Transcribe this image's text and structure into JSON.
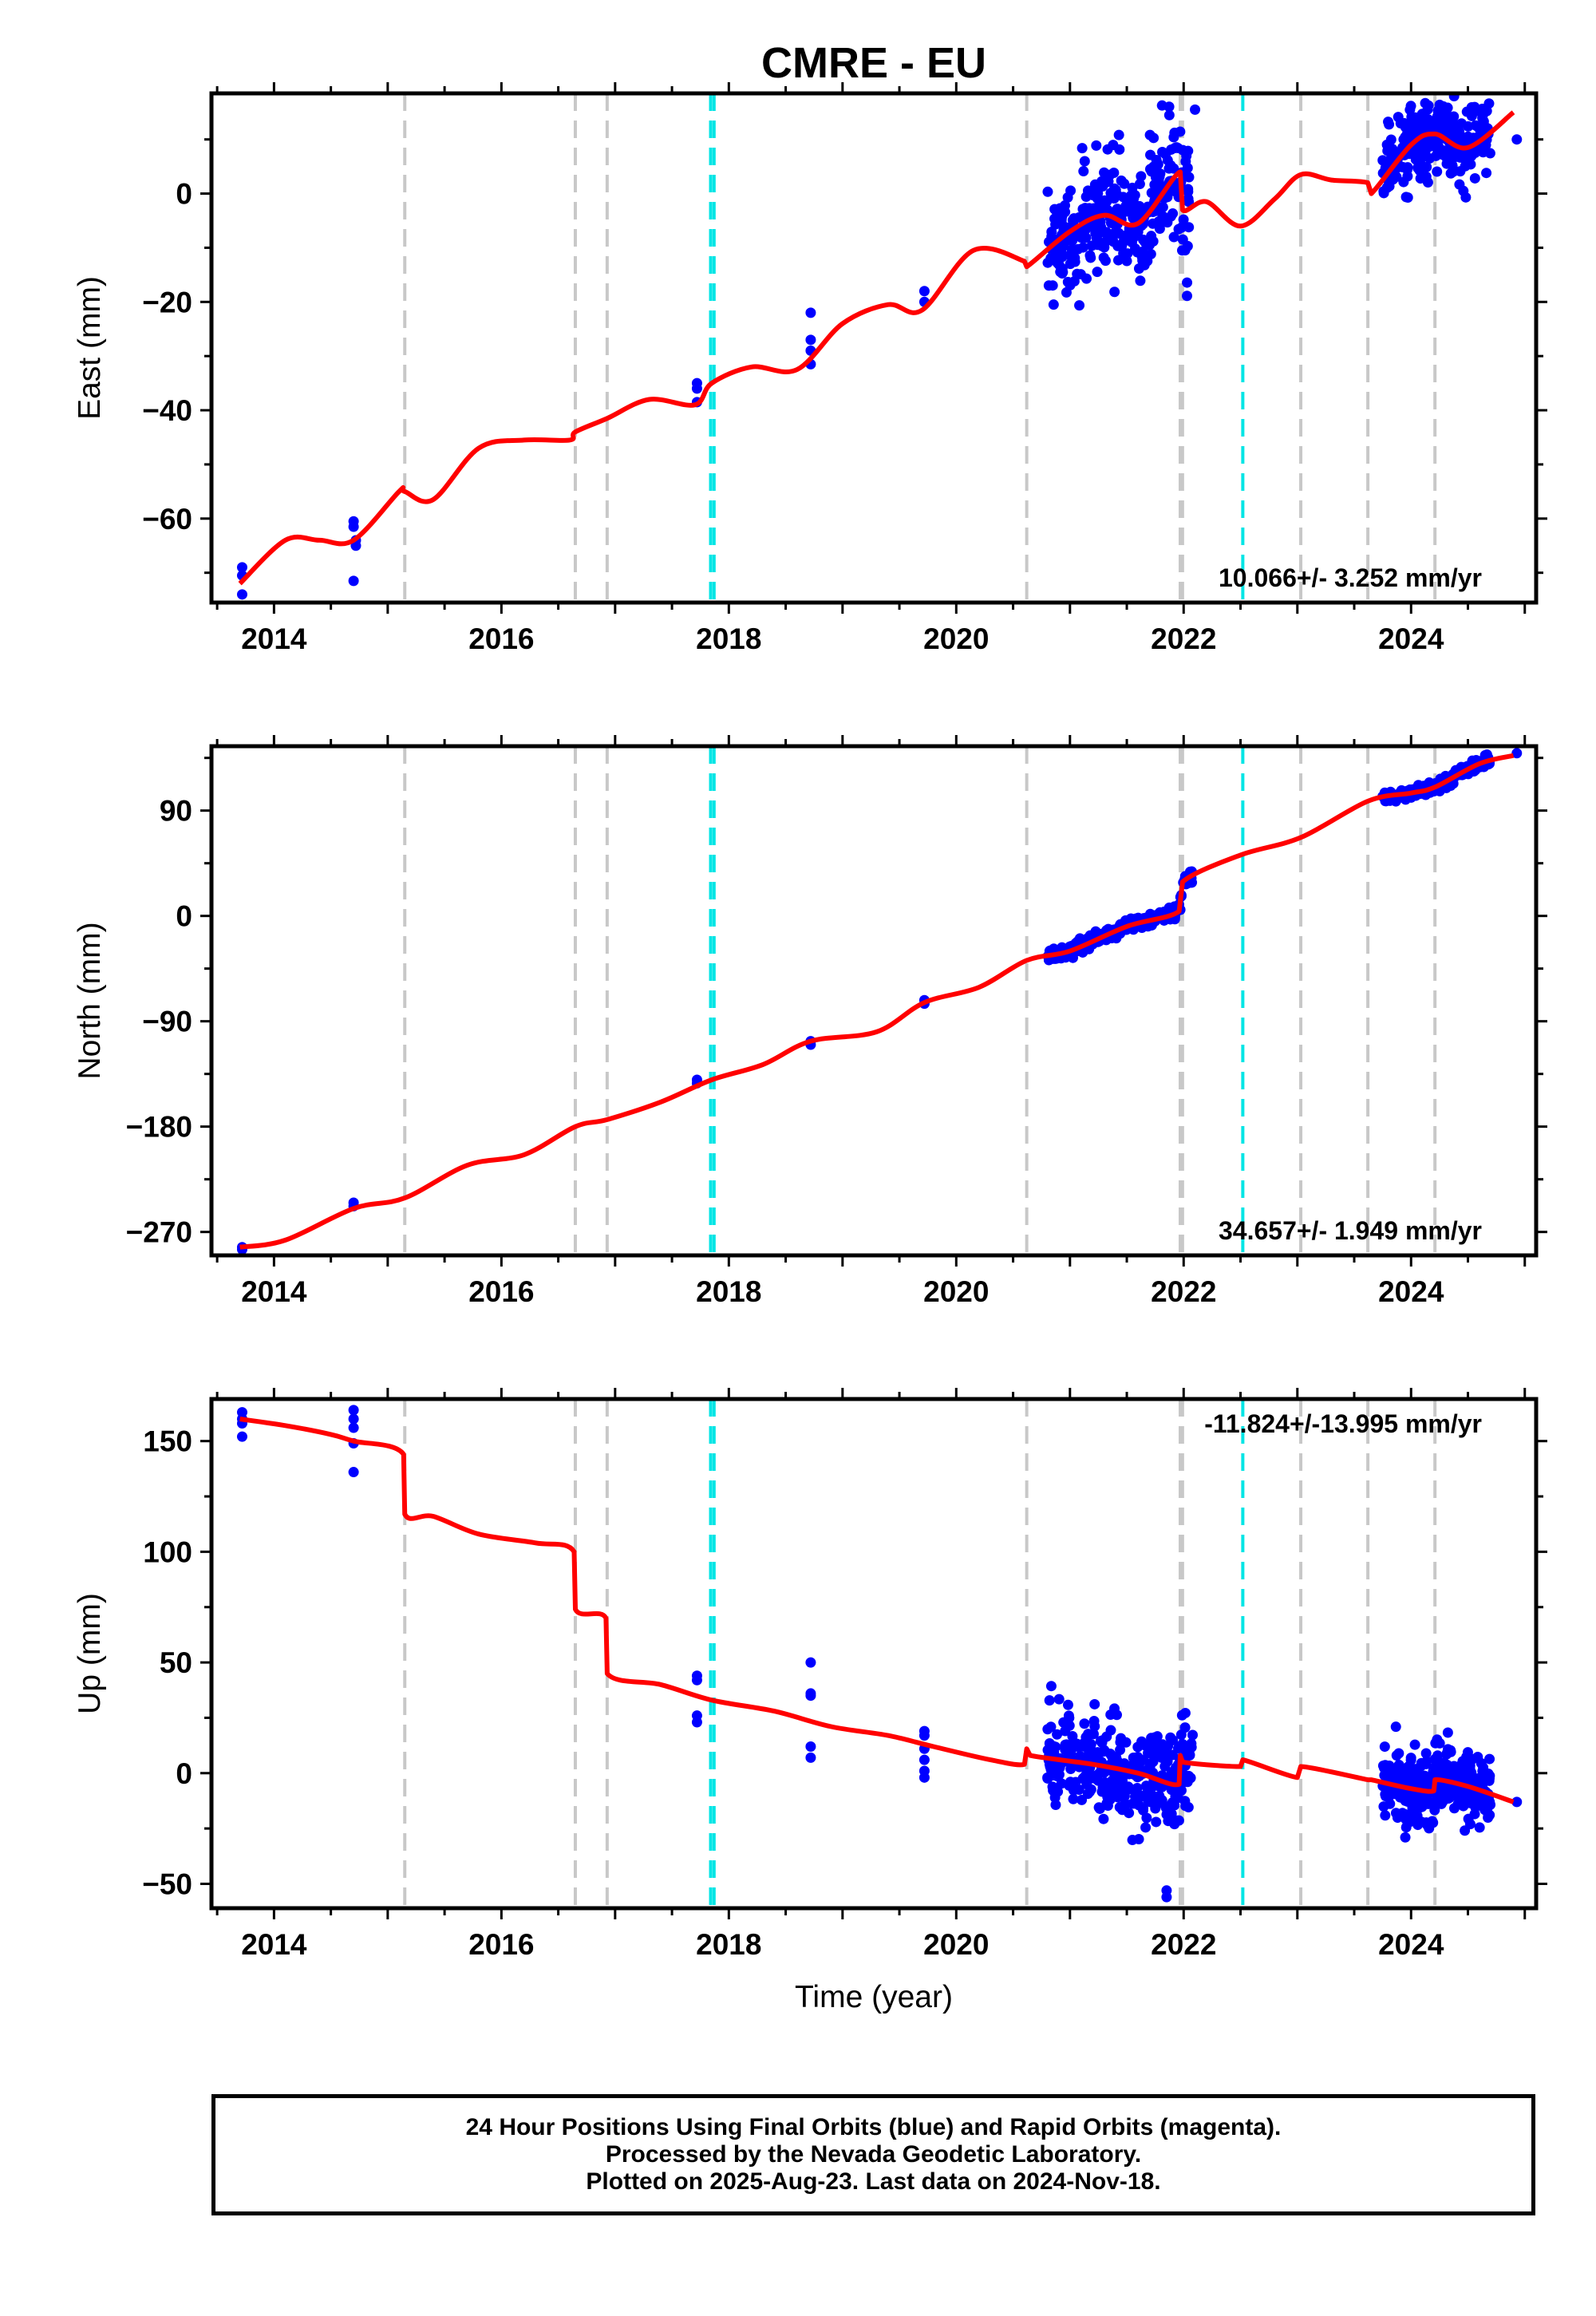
{
  "title": "CMRE - EU",
  "xlabel": "Time (year)",
  "xticks": [
    2014,
    2016,
    2018,
    2020,
    2022,
    2024
  ],
  "footer": {
    "line1": "24 Hour Positions Using Final Orbits (blue) and Rapid Orbits (magenta).",
    "line2": "Processed by the Nevada Geodetic Laboratory.",
    "line3": "Plotted on 2025-Aug-23. Last data on 2024-Nov-18."
  },
  "colors": {
    "data": "#0000ff",
    "model": "#ff0000",
    "antenna_change": "#c8c8c8",
    "equipment_change": "#00e5e5"
  },
  "events": {
    "gray": [
      2015.15,
      2016.65,
      2016.93,
      2020.62,
      2021.97,
      2021.99,
      2023.03,
      2023.62,
      2024.21
    ],
    "cyan": [
      2017.84,
      2017.87,
      2022.52
    ]
  },
  "chart_data": [
    {
      "type": "scatter",
      "ylabel": "East (mm)",
      "xlim": [
        2013.45,
        2025.1
      ],
      "ylim": [
        -75.5,
        18.5
      ],
      "yticks": [
        -60,
        -40,
        -20,
        0
      ],
      "rate_label": "10.066+/- 3.252 mm/yr",
      "rate_pos": "bottom-right",
      "model_trend": [
        [
          2013.7,
          -72
        ],
        [
          2014.1,
          -64
        ],
        [
          2014.4,
          -64
        ],
        [
          2014.7,
          -64
        ],
        [
          2015.1,
          -55
        ],
        [
          2015.15,
          -55
        ],
        [
          2015.4,
          -56.5
        ],
        [
          2015.8,
          -47
        ],
        [
          2016.2,
          -45.5
        ],
        [
          2016.6,
          -45.5
        ],
        [
          2016.65,
          -44
        ],
        [
          2016.93,
          -41.5
        ],
        [
          2017.3,
          -38
        ],
        [
          2017.7,
          -39
        ],
        [
          2017.85,
          -35
        ],
        [
          2018.2,
          -32
        ],
        [
          2018.6,
          -32.5
        ],
        [
          2019.0,
          -24
        ],
        [
          2019.4,
          -20.5
        ],
        [
          2019.7,
          -21.5
        ],
        [
          2020.15,
          -10.5
        ],
        [
          2020.6,
          -12.5
        ],
        [
          2020.62,
          -13.5
        ],
        [
          2021.0,
          -7
        ],
        [
          2021.3,
          -4
        ],
        [
          2021.6,
          -5.5
        ],
        [
          2021.97,
          4
        ],
        [
          2021.99,
          -3
        ],
        [
          2022.2,
          -1.5
        ],
        [
          2022.5,
          -6
        ],
        [
          2022.8,
          -1
        ],
        [
          2023.03,
          3.5
        ],
        [
          2023.3,
          2.5
        ],
        [
          2023.62,
          2
        ],
        [
          2023.65,
          0
        ],
        [
          2024.0,
          9
        ],
        [
          2024.21,
          11
        ],
        [
          2024.5,
          8.5
        ],
        [
          2024.9,
          15
        ]
      ],
      "clusters": [
        {
          "x": [
            2020.8,
            2021.97
          ],
          "center": "model",
          "spread": 5.5,
          "count": 320
        },
        {
          "x": [
            2021.97,
            2022.05
          ],
          "center": "model",
          "spread": 7,
          "count": 24
        },
        {
          "x": [
            2023.75,
            2024.7
          ],
          "center": "model",
          "spread": 3.5,
          "count": 280
        }
      ],
      "points": [
        [
          2013.72,
          -69
        ],
        [
          2013.72,
          -70.5
        ],
        [
          2013.72,
          -74
        ],
        [
          2014.7,
          -60.5
        ],
        [
          2014.7,
          -61.5
        ],
        [
          2014.72,
          -64
        ],
        [
          2014.72,
          -65
        ],
        [
          2014.7,
          -71.5
        ],
        [
          2017.72,
          -35
        ],
        [
          2017.72,
          -36
        ],
        [
          2017.72,
          -38.5
        ],
        [
          2018.72,
          -22
        ],
        [
          2018.72,
          -27
        ],
        [
          2018.72,
          -29
        ],
        [
          2018.72,
          -31.5
        ],
        [
          2019.72,
          -18
        ],
        [
          2019.72,
          -20
        ],
        [
          2022.1,
          15.5
        ],
        [
          2024.93,
          10
        ]
      ]
    },
    {
      "type": "scatter",
      "ylabel": "North (mm)",
      "xlim": [
        2013.45,
        2025.1
      ],
      "ylim": [
        -290,
        145
      ],
      "yticks": [
        -270,
        -180,
        -90,
        0,
        90
      ],
      "rate_label": "34.657+/- 1.949 mm/yr",
      "rate_pos": "bottom-right",
      "model_trend": [
        [
          2013.7,
          -283
        ],
        [
          2014.1,
          -277
        ],
        [
          2014.7,
          -250
        ],
        [
          2015.15,
          -241
        ],
        [
          2015.7,
          -213
        ],
        [
          2016.2,
          -204
        ],
        [
          2016.65,
          -180
        ],
        [
          2016.93,
          -174
        ],
        [
          2017.4,
          -159
        ],
        [
          2017.85,
          -140
        ],
        [
          2018.3,
          -127
        ],
        [
          2018.72,
          -107
        ],
        [
          2019.3,
          -99
        ],
        [
          2019.72,
          -74
        ],
        [
          2020.2,
          -61
        ],
        [
          2020.62,
          -38
        ],
        [
          2021.0,
          -30
        ],
        [
          2021.5,
          -9
        ],
        [
          2021.96,
          4
        ],
        [
          2021.99,
          29
        ],
        [
          2022.5,
          52
        ],
        [
          2023.03,
          67
        ],
        [
          2023.62,
          98
        ],
        [
          2024.0,
          105
        ],
        [
          2024.21,
          110
        ],
        [
          2024.6,
          130
        ],
        [
          2024.9,
          137
        ]
      ],
      "clusters": [
        {
          "x": [
            2020.8,
            2021.97
          ],
          "center": "model",
          "spread": 2.6,
          "count": 300
        },
        {
          "x": [
            2021.97,
            2022.08
          ],
          "center": "model",
          "spread": 3,
          "count": 24
        },
        {
          "x": [
            2023.75,
            2024.7
          ],
          "center": "model",
          "spread": 2.4,
          "count": 260
        }
      ],
      "points": [
        [
          2013.72,
          -283
        ],
        [
          2013.72,
          -285
        ],
        [
          2014.7,
          -245
        ],
        [
          2014.7,
          -248
        ],
        [
          2017.72,
          -140
        ],
        [
          2017.72,
          -143
        ],
        [
          2018.72,
          -107
        ],
        [
          2018.72,
          -110
        ],
        [
          2019.72,
          -72
        ],
        [
          2019.72,
          -75
        ],
        [
          2024.93,
          139
        ]
      ]
    },
    {
      "type": "scatter",
      "ylabel": "Up (mm)",
      "xlim": [
        2013.45,
        2025.1
      ],
      "ylim": [
        -61,
        169
      ],
      "yticks": [
        -50,
        0,
        50,
        100,
        150
      ],
      "rate_label": "-11.824+/-13.995 mm/yr",
      "rate_pos": "top-right",
      "model_trend": [
        [
          2013.7,
          160
        ],
        [
          2014.1,
          157
        ],
        [
          2014.5,
          153
        ],
        [
          2014.7,
          150
        ],
        [
          2015.14,
          144
        ],
        [
          2015.15,
          117
        ],
        [
          2015.4,
          116
        ],
        [
          2015.8,
          108
        ],
        [
          2016.3,
          104
        ],
        [
          2016.64,
          100
        ],
        [
          2016.65,
          74
        ],
        [
          2016.92,
          70
        ],
        [
          2016.93,
          45
        ],
        [
          2017.4,
          40
        ],
        [
          2017.85,
          33
        ],
        [
          2018.4,
          28
        ],
        [
          2018.9,
          21
        ],
        [
          2019.4,
          17
        ],
        [
          2019.8,
          12
        ],
        [
          2020.3,
          6
        ],
        [
          2020.6,
          4
        ],
        [
          2020.62,
          11
        ],
        [
          2020.65,
          8
        ],
        [
          2021.2,
          4
        ],
        [
          2021.6,
          0
        ],
        [
          2021.96,
          -5
        ],
        [
          2021.97,
          8
        ],
        [
          2021.99,
          5
        ],
        [
          2022.5,
          3
        ],
        [
          2022.52,
          6
        ],
        [
          2023.0,
          -2
        ],
        [
          2023.03,
          3
        ],
        [
          2023.62,
          -3
        ],
        [
          2023.65,
          -3
        ],
        [
          2024.0,
          -7
        ],
        [
          2024.2,
          -8
        ],
        [
          2024.21,
          -3
        ],
        [
          2024.5,
          -6
        ],
        [
          2024.9,
          -13
        ]
      ],
      "clusters": [
        {
          "x": [
            2020.8,
            2021.97
          ],
          "center": "model",
          "spread": 11,
          "count": 330
        },
        {
          "x": [
            2021.97,
            2022.08
          ],
          "center": "model",
          "spread": 12,
          "count": 26
        },
        {
          "x": [
            2023.75,
            2024.7
          ],
          "center": "model",
          "spread": 8,
          "count": 300
        }
      ],
      "points": [
        [
          2013.72,
          163
        ],
        [
          2013.72,
          160
        ],
        [
          2013.72,
          158
        ],
        [
          2013.72,
          152
        ],
        [
          2014.7,
          164
        ],
        [
          2014.7,
          160
        ],
        [
          2014.7,
          156
        ],
        [
          2014.7,
          149
        ],
        [
          2014.7,
          136
        ],
        [
          2017.72,
          44
        ],
        [
          2017.72,
          42
        ],
        [
          2017.72,
          26
        ],
        [
          2017.72,
          23
        ],
        [
          2018.72,
          50
        ],
        [
          2018.72,
          36
        ],
        [
          2018.72,
          35
        ],
        [
          2018.72,
          12
        ],
        [
          2018.72,
          7
        ],
        [
          2019.72,
          19
        ],
        [
          2019.72,
          17
        ],
        [
          2019.72,
          11
        ],
        [
          2019.72,
          6
        ],
        [
          2019.72,
          1
        ],
        [
          2019.72,
          -2
        ],
        [
          2021.85,
          -53
        ],
        [
          2021.85,
          -56
        ],
        [
          2024.93,
          -13
        ]
      ]
    }
  ]
}
